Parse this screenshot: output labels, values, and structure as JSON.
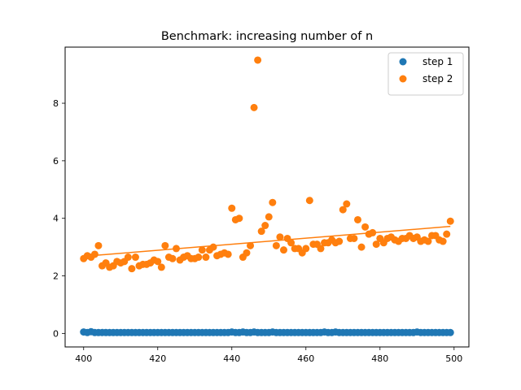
{
  "chart_data": {
    "type": "scatter",
    "title": "Benchmark: increasing number of n",
    "xlabel": "",
    "ylabel": "",
    "xlim": [
      395,
      504
    ],
    "ylim": [
      -0.47,
      9.95
    ],
    "xticks": [
      400,
      420,
      440,
      460,
      480,
      500
    ],
    "yticks": [
      0,
      2,
      4,
      6,
      8
    ],
    "grid": false,
    "legend_position": "upper right",
    "series": [
      {
        "name": "step 1",
        "kind": "scatter",
        "color": "#1f77b4",
        "x": [
          400,
          401,
          402,
          403,
          404,
          405,
          406,
          407,
          408,
          409,
          410,
          411,
          412,
          413,
          414,
          415,
          416,
          417,
          418,
          419,
          420,
          421,
          422,
          423,
          424,
          425,
          426,
          427,
          428,
          429,
          430,
          431,
          432,
          433,
          434,
          435,
          436,
          437,
          438,
          439,
          440,
          441,
          442,
          443,
          444,
          445,
          446,
          447,
          448,
          449,
          450,
          451,
          452,
          453,
          454,
          455,
          456,
          457,
          458,
          459,
          460,
          461,
          462,
          463,
          464,
          465,
          466,
          467,
          468,
          469,
          470,
          471,
          472,
          473,
          474,
          475,
          476,
          477,
          478,
          479,
          480,
          481,
          482,
          483,
          484,
          485,
          486,
          487,
          488,
          489,
          490,
          491,
          492,
          493,
          494,
          495,
          496,
          497,
          498,
          499
        ],
        "y": [
          0.05,
          0.03,
          0.06,
          0.03,
          0.03,
          0.03,
          0.03,
          0.03,
          0.03,
          0.03,
          0.03,
          0.03,
          0.03,
          0.03,
          0.03,
          0.03,
          0.03,
          0.03,
          0.03,
          0.03,
          0.03,
          0.03,
          0.03,
          0.03,
          0.03,
          0.03,
          0.03,
          0.03,
          0.03,
          0.03,
          0.03,
          0.03,
          0.03,
          0.03,
          0.03,
          0.03,
          0.03,
          0.03,
          0.03,
          0.03,
          0.05,
          0.03,
          0.03,
          0.05,
          0.03,
          0.03,
          0.05,
          0.03,
          0.03,
          0.03,
          0.03,
          0.05,
          0.03,
          0.03,
          0.03,
          0.03,
          0.03,
          0.03,
          0.03,
          0.03,
          0.03,
          0.03,
          0.03,
          0.03,
          0.03,
          0.05,
          0.03,
          0.03,
          0.05,
          0.03,
          0.03,
          0.03,
          0.03,
          0.03,
          0.03,
          0.03,
          0.03,
          0.03,
          0.03,
          0.03,
          0.03,
          0.03,
          0.03,
          0.03,
          0.03,
          0.03,
          0.03,
          0.03,
          0.03,
          0.03,
          0.05,
          0.03,
          0.03,
          0.03,
          0.03,
          0.03,
          0.03,
          0.03,
          0.03,
          0.03
        ]
      },
      {
        "name": "step 2",
        "kind": "scatter",
        "color": "#ff7f0e",
        "x": [
          400,
          401,
          402,
          403,
          404,
          405,
          406,
          407,
          408,
          409,
          410,
          411,
          412,
          413,
          414,
          415,
          416,
          417,
          418,
          419,
          420,
          421,
          422,
          423,
          424,
          425,
          426,
          427,
          428,
          429,
          430,
          431,
          432,
          433,
          434,
          435,
          436,
          437,
          438,
          439,
          440,
          441,
          442,
          443,
          444,
          445,
          446,
          447,
          448,
          449,
          450,
          451,
          452,
          453,
          454,
          455,
          456,
          457,
          458,
          459,
          460,
          461,
          462,
          463,
          464,
          465,
          466,
          467,
          468,
          469,
          470,
          471,
          472,
          473,
          474,
          475,
          476,
          477,
          478,
          479,
          480,
          481,
          482,
          483,
          484,
          485,
          486,
          487,
          488,
          489,
          490,
          491,
          492,
          493,
          494,
          495,
          496,
          497,
          498,
          499
        ],
        "y": [
          2.6,
          2.7,
          2.65,
          2.75,
          3.05,
          2.35,
          2.45,
          2.3,
          2.35,
          2.5,
          2.45,
          2.5,
          2.65,
          2.25,
          2.65,
          2.35,
          2.4,
          2.4,
          2.45,
          2.55,
          2.5,
          2.3,
          3.05,
          2.65,
          2.6,
          2.95,
          2.55,
          2.65,
          2.7,
          2.6,
          2.6,
          2.65,
          2.9,
          2.65,
          2.9,
          3.0,
          2.7,
          2.75,
          2.8,
          2.75,
          4.35,
          3.95,
          4.0,
          2.65,
          2.8,
          3.05,
          7.85,
          9.5,
          3.55,
          3.75,
          4.05,
          4.55,
          3.05,
          3.35,
          2.9,
          3.3,
          3.15,
          2.95,
          2.95,
          2.8,
          2.95,
          4.62,
          3.1,
          3.1,
          2.95,
          3.15,
          3.15,
          3.25,
          3.15,
          3.2,
          4.3,
          4.5,
          3.3,
          3.3,
          3.95,
          3.0,
          3.7,
          3.45,
          3.5,
          3.1,
          3.3,
          3.15,
          3.3,
          3.35,
          3.25,
          3.2,
          3.3,
          3.3,
          3.4,
          3.3,
          3.35,
          3.2,
          3.25,
          3.2,
          3.4,
          3.4,
          3.25,
          3.2,
          3.45,
          3.9
        ]
      },
      {
        "name": "",
        "kind": "line",
        "color": "#ff7f0e",
        "x": [
          400,
          499
        ],
        "y": [
          2.68,
          3.72
        ]
      }
    ]
  }
}
